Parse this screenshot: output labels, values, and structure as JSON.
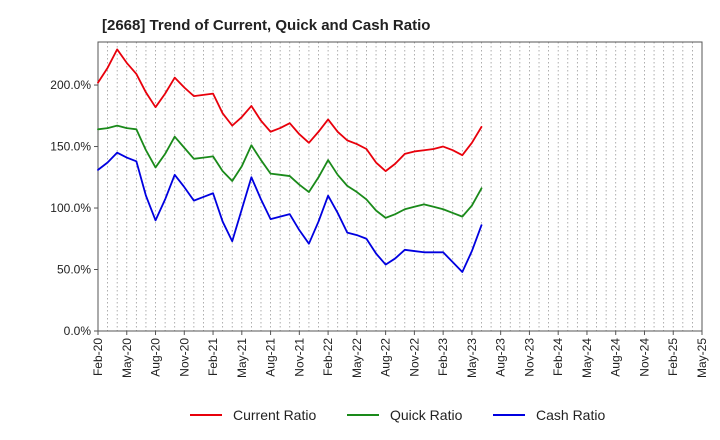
{
  "chart_data": {
    "type": "line",
    "title": "[2668]  Trend of Current, Quick and Cash Ratio",
    "xlabel": "",
    "ylabel": "",
    "ylim": [
      0,
      235
    ],
    "y_ticks": [
      0,
      50,
      100,
      150,
      200
    ],
    "y_tick_labels": [
      "0.0%",
      "50.0%",
      "100.0%",
      "150.0%",
      "200.0%"
    ],
    "x_tick_labels": [
      "Feb-20",
      "May-20",
      "Aug-20",
      "Nov-20",
      "Feb-21",
      "May-21",
      "Aug-21",
      "Nov-21",
      "Feb-22",
      "May-22",
      "Aug-22",
      "Nov-22",
      "Feb-23",
      "May-23",
      "Aug-23",
      "Nov-23",
      "Feb-24",
      "May-24",
      "Aug-24",
      "Nov-24",
      "Feb-25",
      "May-25"
    ],
    "x_index_range": [
      0,
      63
    ],
    "grid": "vertical dotted",
    "legend_position": "bottom",
    "series": [
      {
        "name": "Current Ratio",
        "color": "#e8000b",
        "values": [
          202,
          214,
          229,
          218,
          209,
          194,
          182,
          193,
          206,
          198,
          191,
          192,
          193,
          177,
          167,
          174,
          183,
          171,
          162,
          165,
          169,
          160,
          153,
          162,
          172,
          162,
          155,
          152,
          148,
          137,
          130,
          136,
          144,
          146,
          147,
          148,
          150,
          147,
          143,
          153,
          166
        ]
      },
      {
        "name": "Quick Ratio",
        "color": "#1a8a1a",
        "values": [
          164,
          165,
          167,
          165,
          164,
          147,
          133,
          144,
          158,
          149,
          140,
          141,
          142,
          130,
          122,
          134,
          151,
          139,
          128,
          127,
          126,
          119,
          113,
          125,
          139,
          127,
          118,
          113,
          107,
          98,
          92,
          95,
          99,
          101,
          103,
          101,
          99,
          96,
          93,
          102,
          116
        ]
      },
      {
        "name": "Cash Ratio",
        "color": "#0000e0",
        "values": [
          131,
          137,
          145,
          141,
          138,
          110,
          90,
          107,
          127,
          117,
          106,
          109,
          112,
          89,
          73,
          99,
          125,
          107,
          91,
          93,
          95,
          82,
          71,
          89,
          110,
          96,
          80,
          78,
          75,
          63,
          54,
          59,
          66,
          65,
          64,
          64,
          64,
          56,
          48,
          65,
          86
        ]
      }
    ]
  }
}
